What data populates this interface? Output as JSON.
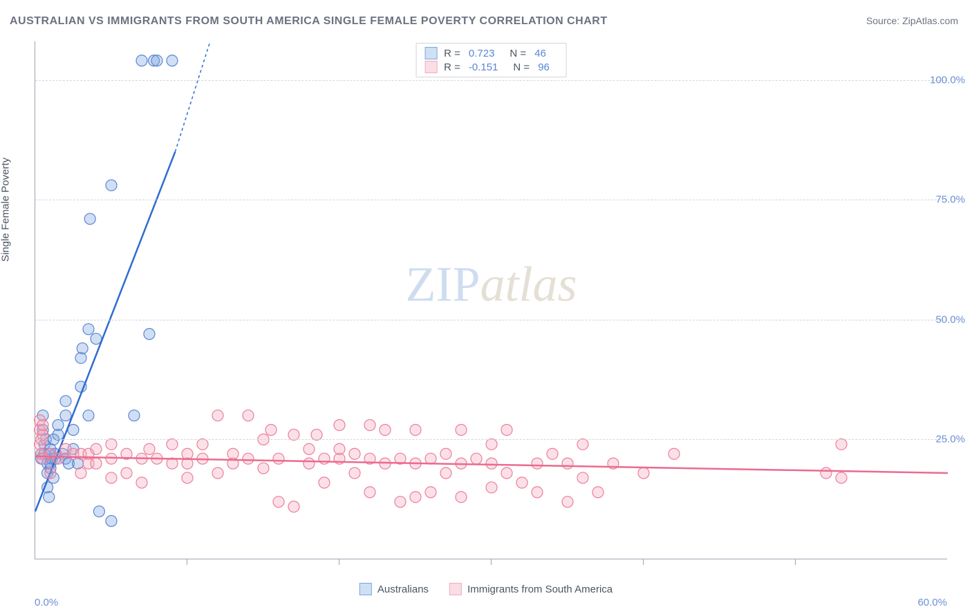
{
  "title": "AUSTRALIAN VS IMMIGRANTS FROM SOUTH AMERICA SINGLE FEMALE POVERTY CORRELATION CHART",
  "source": "Source: ZipAtlas.com",
  "y_axis_label": "Single Female Poverty",
  "watermark_zip": "ZIP",
  "watermark_atlas": "atlas",
  "chart": {
    "type": "scatter",
    "background_color": "#ffffff",
    "grid_color": "#d1d5db",
    "axis_color": "#9ca3af",
    "xlim": [
      0,
      60
    ],
    "ylim": [
      0,
      108
    ],
    "x_ticks": [
      0,
      60
    ],
    "x_tick_labels": [
      "0.0%",
      "60.0%"
    ],
    "x_minor_tick_step": 10,
    "y_ticks": [
      25,
      50,
      75,
      100
    ],
    "y_tick_labels": [
      "25.0%",
      "50.0%",
      "75.0%",
      "100.0%"
    ],
    "marker_radius": 8,
    "marker_fill_opacity": 0.35,
    "line_width": 2.5,
    "series": [
      {
        "name": "Australians",
        "color": "#7aa4e0",
        "stroke": "#5a85d6",
        "line_color": "#2f6bd0",
        "R": "0.723",
        "N": "46",
        "trend": {
          "x1": 0,
          "y1": 10,
          "x2": 9.2,
          "y2": 85,
          "dash_to_x": 11.5,
          "dash_to_y": 108
        },
        "points": [
          [
            0.4,
            21
          ],
          [
            0.4,
            22
          ],
          [
            0.5,
            27
          ],
          [
            0.5,
            30
          ],
          [
            0.6,
            22
          ],
          [
            0.6,
            24
          ],
          [
            0.7,
            25
          ],
          [
            0.8,
            15
          ],
          [
            0.8,
            18
          ],
          [
            0.8,
            20
          ],
          [
            0.9,
            13
          ],
          [
            0.9,
            22
          ],
          [
            1.0,
            19
          ],
          [
            1.0,
            20
          ],
          [
            1.0,
            23
          ],
          [
            1.1,
            21
          ],
          [
            1.2,
            17
          ],
          [
            1.2,
            25
          ],
          [
            1.3,
            21
          ],
          [
            1.3,
            22
          ],
          [
            1.5,
            26
          ],
          [
            1.5,
            28
          ],
          [
            1.8,
            22
          ],
          [
            2.0,
            21
          ],
          [
            2.0,
            30
          ],
          [
            2.0,
            33
          ],
          [
            2.2,
            20
          ],
          [
            2.5,
            23
          ],
          [
            2.5,
            27
          ],
          [
            2.8,
            20
          ],
          [
            3.0,
            36
          ],
          [
            3.0,
            42
          ],
          [
            3.1,
            44
          ],
          [
            3.5,
            30
          ],
          [
            3.5,
            48
          ],
          [
            3.6,
            71
          ],
          [
            4.0,
            46
          ],
          [
            4.2,
            10
          ],
          [
            5.0,
            8
          ],
          [
            5.0,
            78
          ],
          [
            6.5,
            30
          ],
          [
            7.0,
            104
          ],
          [
            7.5,
            47
          ],
          [
            7.8,
            104
          ],
          [
            8.0,
            104
          ],
          [
            9.0,
            104
          ]
        ]
      },
      {
        "name": "Immigrants from South America",
        "color": "#f4a9bb",
        "stroke": "#ec7d9b",
        "line_color": "#ec6a8e",
        "R": "-0.151",
        "N": "96",
        "trend": {
          "x1": 0,
          "y1": 21.5,
          "x2": 60,
          "y2": 18
        },
        "points": [
          [
            0.3,
            24
          ],
          [
            0.3,
            27
          ],
          [
            0.3,
            29
          ],
          [
            0.4,
            22
          ],
          [
            0.4,
            25
          ],
          [
            0.5,
            21
          ],
          [
            0.5,
            26
          ],
          [
            0.5,
            28
          ],
          [
            1.0,
            18
          ],
          [
            1.0,
            22
          ],
          [
            1.5,
            21
          ],
          [
            2.0,
            23
          ],
          [
            2.5,
            22
          ],
          [
            3.0,
            18
          ],
          [
            3.0,
            22
          ],
          [
            3.5,
            20
          ],
          [
            3.5,
            22
          ],
          [
            4.0,
            20
          ],
          [
            4.0,
            23
          ],
          [
            5.0,
            17
          ],
          [
            5.0,
            21
          ],
          [
            5.0,
            24
          ],
          [
            6.0,
            18
          ],
          [
            6.0,
            22
          ],
          [
            7.0,
            16
          ],
          [
            7.0,
            21
          ],
          [
            7.5,
            23
          ],
          [
            8.0,
            21
          ],
          [
            9.0,
            20
          ],
          [
            9.0,
            24
          ],
          [
            10,
            17
          ],
          [
            10,
            20
          ],
          [
            10,
            22
          ],
          [
            11,
            21
          ],
          [
            11,
            24
          ],
          [
            12,
            18
          ],
          [
            12,
            30
          ],
          [
            13,
            20
          ],
          [
            13,
            22
          ],
          [
            14,
            21
          ],
          [
            14,
            30
          ],
          [
            15,
            19
          ],
          [
            15,
            25
          ],
          [
            15.5,
            27
          ],
          [
            16,
            12
          ],
          [
            16,
            21
          ],
          [
            17,
            11
          ],
          [
            17,
            26
          ],
          [
            18,
            20
          ],
          [
            18,
            23
          ],
          [
            18.5,
            26
          ],
          [
            19,
            16
          ],
          [
            19,
            21
          ],
          [
            20,
            21
          ],
          [
            20,
            23
          ],
          [
            20,
            28
          ],
          [
            21,
            18
          ],
          [
            21,
            22
          ],
          [
            22,
            14
          ],
          [
            22,
            21
          ],
          [
            22,
            28
          ],
          [
            23,
            20
          ],
          [
            23,
            27
          ],
          [
            24,
            12
          ],
          [
            24,
            21
          ],
          [
            25,
            13
          ],
          [
            25,
            20
          ],
          [
            25,
            27
          ],
          [
            26,
            14
          ],
          [
            26,
            21
          ],
          [
            27,
            18
          ],
          [
            27,
            22
          ],
          [
            28,
            13
          ],
          [
            28,
            20
          ],
          [
            28,
            27
          ],
          [
            29,
            21
          ],
          [
            30,
            15
          ],
          [
            30,
            20
          ],
          [
            30,
            24
          ],
          [
            31,
            18
          ],
          [
            31,
            27
          ],
          [
            32,
            16
          ],
          [
            33,
            14
          ],
          [
            33,
            20
          ],
          [
            34,
            22
          ],
          [
            35,
            12
          ],
          [
            35,
            20
          ],
          [
            36,
            17
          ],
          [
            36,
            24
          ],
          [
            37,
            14
          ],
          [
            38,
            20
          ],
          [
            40,
            18
          ],
          [
            42,
            22
          ],
          [
            52,
            18
          ],
          [
            53,
            24
          ],
          [
            53,
            17
          ]
        ]
      }
    ]
  },
  "stats_legend": {
    "rows": [
      {
        "swatch_fill": "#cfe0f5",
        "swatch_stroke": "#7aa4e0",
        "R_label": "R =",
        "R": "0.723",
        "N_label": "N =",
        "N": "46"
      },
      {
        "swatch_fill": "#fbdde5",
        "swatch_stroke": "#f4a9bb",
        "R_label": "R =",
        "R": "-0.151",
        "N_label": "N =",
        "N": "96"
      }
    ]
  },
  "bottom_legend": [
    {
      "swatch_fill": "#cfe0f5",
      "swatch_stroke": "#7aa4e0",
      "label": "Australians"
    },
    {
      "swatch_fill": "#fbdde5",
      "swatch_stroke": "#f4a9bb",
      "label": "Immigrants from South America"
    }
  ]
}
